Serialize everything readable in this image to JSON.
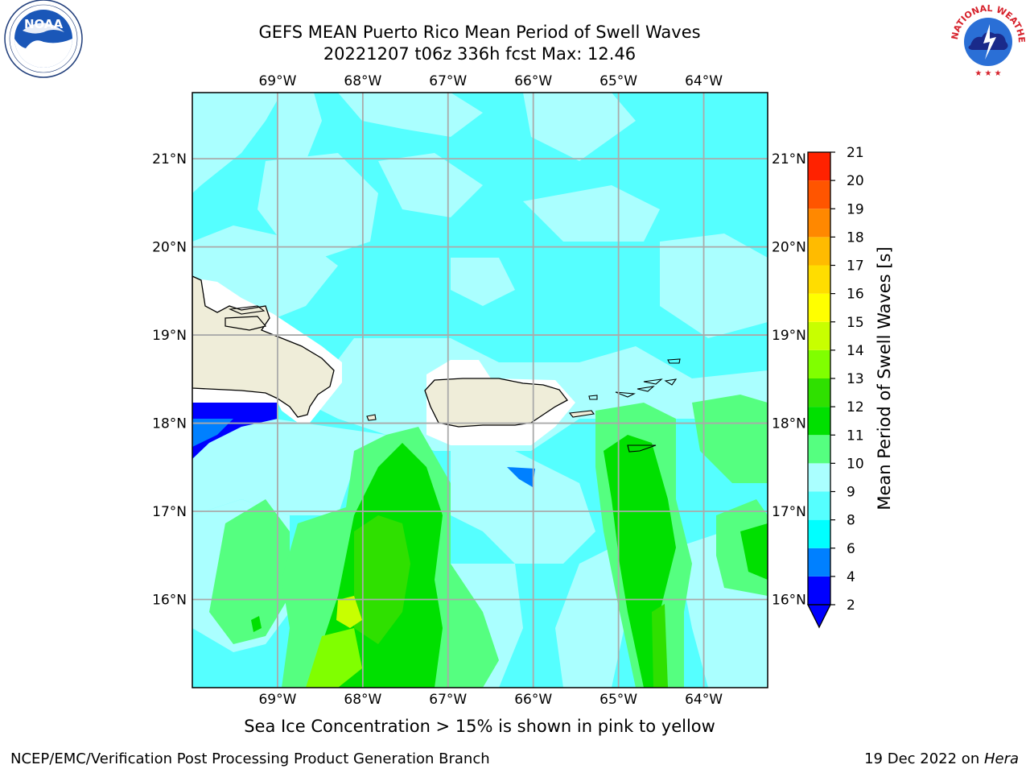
{
  "title": {
    "line1": "GEFS MEAN Puerto Rico Mean Period of Swell Waves",
    "line2": "20221207 t06z 336h fcst   Max: 12.46"
  },
  "map": {
    "lon_labels": [
      "69°W",
      "68°W",
      "67°W",
      "66°W",
      "65°W",
      "64°W"
    ],
    "lat_labels": [
      "21°N",
      "20°N",
      "19°N",
      "18°N",
      "17°N",
      "16°N"
    ],
    "lon_values": [
      -69,
      -68,
      -67,
      -66,
      -65,
      -64
    ],
    "lat_values": [
      21,
      20,
      19,
      18,
      17,
      16
    ],
    "lon_range": [
      -70,
      -63.25
    ],
    "lat_range": [
      15,
      21.75
    ],
    "colors": {
      "land": "#efedd9",
      "nodata": "#ffffff",
      "grid": "#aaaaaa"
    }
  },
  "colorbar": {
    "label": "Mean Period of Swell Waves [s]",
    "ticks": [
      "2",
      "4",
      "6",
      "8",
      "9",
      "10",
      "11",
      "12",
      "13",
      "14",
      "15",
      "16",
      "17",
      "18",
      "19",
      "20",
      "21"
    ],
    "colors": [
      "#0000ff",
      "#0080ff",
      "#00ffff",
      "#55ffff",
      "#aaffff",
      "#55ff80",
      "#00e000",
      "#2fe000",
      "#80ff00",
      "#c8ff00",
      "#ffff00",
      "#ffdd00",
      "#ffbb00",
      "#ff8800",
      "#ff5500",
      "#ff2200",
      "#ff0000"
    ],
    "under_color": "#0000ff"
  },
  "footer": {
    "caption": "Sea Ice Concentration > 15% is shown in pink to yellow",
    "left": "NCEP/EMC/Verification Post Processing Product Generation Branch",
    "right_prefix": "19 Dec 2022 on ",
    "right_machine": "Hera"
  },
  "logos": {
    "noaa_text": "NOAA",
    "nws_text": "NATIONAL WEATHER SERVICE"
  }
}
